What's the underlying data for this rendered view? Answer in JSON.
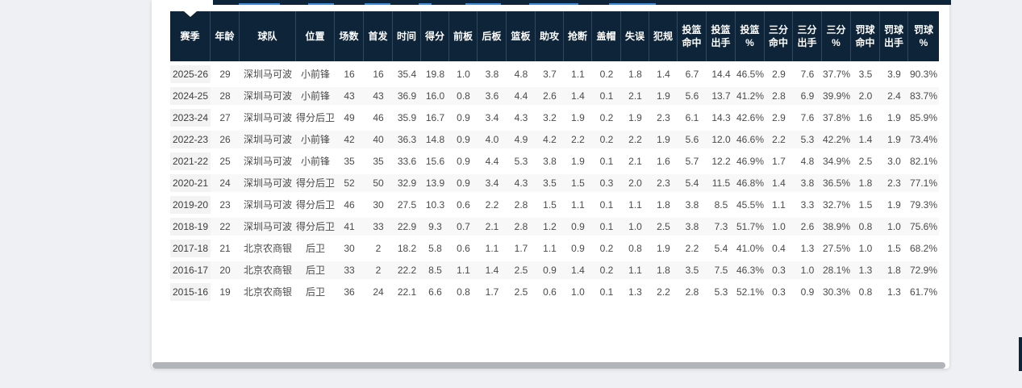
{
  "colors": {
    "page_bg": "#eef0f3",
    "card_bg": "#ffffff",
    "topbar_bg": "#0e2438",
    "tab_underline": "#3e8ddd",
    "header_bg": "#0e2438",
    "header_divider": "#31485f",
    "header_text": "#ffffff",
    "body_text": "#4a4a4a",
    "season_cell_bg": "#f3f3f4",
    "stripe_bg": "#f8f8f9",
    "scrollbar": "#b1b4b8"
  },
  "table": {
    "columns": [
      {
        "key": "season",
        "label": "赛季"
      },
      {
        "key": "age",
        "label": "年龄"
      },
      {
        "key": "team",
        "label": "球队"
      },
      {
        "key": "pos",
        "label": "位置"
      },
      {
        "key": "gp",
        "label": "场数"
      },
      {
        "key": "gs",
        "label": "首发"
      },
      {
        "key": "min",
        "label": "时间"
      },
      {
        "key": "pts",
        "label": "得分"
      },
      {
        "key": "orb",
        "label": "前板"
      },
      {
        "key": "drb",
        "label": "后板"
      },
      {
        "key": "reb",
        "label": "篮板"
      },
      {
        "key": "ast",
        "label": "助攻"
      },
      {
        "key": "stl",
        "label": "抢断"
      },
      {
        "key": "blk",
        "label": "盖帽"
      },
      {
        "key": "tov",
        "label": "失误"
      },
      {
        "key": "pf",
        "label": "犯规"
      },
      {
        "key": "fgm",
        "label": "投篮\n命中"
      },
      {
        "key": "fga",
        "label": "投篮\n出手"
      },
      {
        "key": "fgp",
        "label": "投篮\n%"
      },
      {
        "key": "tpm",
        "label": "三分\n命中"
      },
      {
        "key": "tpa",
        "label": "三分\n出手"
      },
      {
        "key": "tpp",
        "label": "三分\n%"
      },
      {
        "key": "ftm",
        "label": "罚球\n命中"
      },
      {
        "key": "fta",
        "label": "罚球\n出手"
      },
      {
        "key": "ftp",
        "label": "罚球\n%"
      }
    ],
    "rows": [
      [
        "2025-26",
        "29",
        "深圳马可波罗",
        "小前锋",
        "16",
        "16",
        "35.4",
        "19.8",
        "1.0",
        "3.8",
        "4.8",
        "3.7",
        "1.1",
        "0.2",
        "1.8",
        "1.4",
        "6.7",
        "14.4",
        "46.5%",
        "2.9",
        "7.6",
        "37.7%",
        "3.5",
        "3.9",
        "90.3%"
      ],
      [
        "2024-25",
        "28",
        "深圳马可波罗",
        "小前锋",
        "43",
        "43",
        "36.9",
        "16.0",
        "0.8",
        "3.6",
        "4.4",
        "2.6",
        "1.4",
        "0.1",
        "2.1",
        "1.9",
        "5.6",
        "13.7",
        "41.2%",
        "2.8",
        "6.9",
        "39.9%",
        "2.0",
        "2.4",
        "83.7%"
      ],
      [
        "2023-24",
        "27",
        "深圳马可波罗",
        "得分后卫",
        "49",
        "46",
        "35.9",
        "16.7",
        "0.9",
        "3.4",
        "4.3",
        "3.2",
        "1.9",
        "0.2",
        "1.9",
        "2.3",
        "6.1",
        "14.3",
        "42.6%",
        "2.9",
        "7.6",
        "37.8%",
        "1.6",
        "1.9",
        "85.9%"
      ],
      [
        "2022-23",
        "26",
        "深圳马可波罗",
        "小前锋",
        "42",
        "40",
        "36.3",
        "14.8",
        "0.9",
        "4.0",
        "4.9",
        "4.2",
        "2.2",
        "0.2",
        "2.2",
        "1.9",
        "5.6",
        "12.0",
        "46.6%",
        "2.2",
        "5.3",
        "42.2%",
        "1.4",
        "1.9",
        "73.4%"
      ],
      [
        "2021-22",
        "25",
        "深圳马可波罗",
        "小前锋",
        "35",
        "35",
        "33.6",
        "15.6",
        "0.9",
        "4.4",
        "5.3",
        "3.8",
        "1.9",
        "0.1",
        "2.1",
        "1.6",
        "5.7",
        "12.2",
        "46.9%",
        "1.7",
        "4.8",
        "34.9%",
        "2.5",
        "3.0",
        "82.1%"
      ],
      [
        "2020-21",
        "24",
        "深圳马可波罗",
        "得分后卫",
        "52",
        "50",
        "32.9",
        "13.9",
        "0.9",
        "3.4",
        "4.3",
        "3.5",
        "1.5",
        "0.3",
        "2.0",
        "2.3",
        "5.4",
        "11.5",
        "46.8%",
        "1.4",
        "3.8",
        "36.5%",
        "1.8",
        "2.3",
        "77.1%"
      ],
      [
        "2019-20",
        "23",
        "深圳马可波罗",
        "得分后卫",
        "46",
        "30",
        "27.5",
        "10.3",
        "0.6",
        "2.2",
        "2.8",
        "1.5",
        "1.1",
        "0.1",
        "1.1",
        "1.8",
        "3.8",
        "8.5",
        "45.5%",
        "1.1",
        "3.3",
        "32.7%",
        "1.5",
        "1.9",
        "79.3%"
      ],
      [
        "2018-19",
        "22",
        "深圳马可波罗",
        "得分后卫",
        "41",
        "33",
        "22.9",
        "9.3",
        "0.7",
        "2.1",
        "2.8",
        "1.2",
        "0.9",
        "0.1",
        "1.0",
        "2.5",
        "3.8",
        "7.3",
        "51.7%",
        "1.0",
        "2.6",
        "38.9%",
        "0.8",
        "1.0",
        "75.6%"
      ],
      [
        "2017-18",
        "21",
        "北京农商银行",
        "后卫",
        "30",
        "2",
        "18.2",
        "5.8",
        "0.6",
        "1.1",
        "1.7",
        "1.1",
        "0.9",
        "0.2",
        "0.8",
        "1.9",
        "2.2",
        "5.4",
        "41.0%",
        "0.4",
        "1.3",
        "27.5%",
        "1.0",
        "1.5",
        "68.2%"
      ],
      [
        "2016-17",
        "20",
        "北京农商银行",
        "后卫",
        "33",
        "2",
        "22.2",
        "8.5",
        "1.1",
        "1.4",
        "2.5",
        "0.9",
        "1.4",
        "0.2",
        "1.1",
        "1.8",
        "3.5",
        "7.5",
        "46.3%",
        "0.3",
        "1.0",
        "28.1%",
        "1.3",
        "1.8",
        "72.9%"
      ],
      [
        "2015-16",
        "19",
        "北京农商银行",
        "后卫",
        "36",
        "24",
        "22.1",
        "6.6",
        "0.8",
        "1.7",
        "2.5",
        "0.6",
        "1.0",
        "0.1",
        "1.3",
        "2.2",
        "2.8",
        "5.3",
        "52.1%",
        "0.3",
        "0.9",
        "30.3%",
        "0.8",
        "1.3",
        "61.7%"
      ]
    ]
  }
}
